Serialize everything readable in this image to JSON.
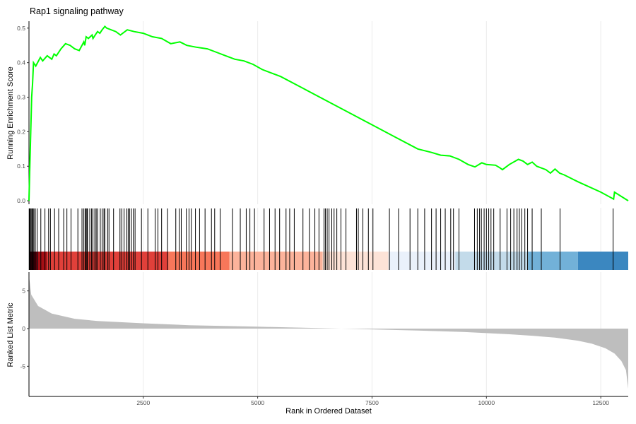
{
  "chart_data": {
    "type": "line",
    "title": "Rap1 signaling pathway",
    "xlabel": "Rank in Ordered Dataset",
    "xlim": [
      1,
      13100
    ],
    "x_ticks": [
      2500,
      5000,
      7500,
      10000,
      12500
    ],
    "panels": {
      "running_score": {
        "ylabel": "Running Enrichment Score",
        "ylim": [
          -0.01,
          0.52
        ],
        "y_ticks": [
          0.0,
          0.1,
          0.2,
          0.3,
          0.4,
          0.5
        ],
        "line_color": "#00ff00",
        "x": [
          1,
          20,
          40,
          60,
          80,
          100,
          150,
          250,
          300,
          400,
          500,
          550,
          600,
          700,
          800,
          900,
          1000,
          1100,
          1200,
          1220,
          1250,
          1300,
          1380,
          1400,
          1450,
          1500,
          1550,
          1600,
          1660,
          1700,
          1900,
          2000,
          2150,
          2300,
          2500,
          2700,
          2900,
          3100,
          3300,
          3450,
          3650,
          3900,
          4100,
          4300,
          4500,
          4700,
          4900,
          5100,
          5500,
          6000,
          6500,
          7000,
          7500,
          8000,
          8500,
          8800,
          9000,
          9200,
          9400,
          9600,
          9750,
          9900,
          10000,
          10200,
          10300,
          10350,
          10500,
          10700,
          10800,
          10900,
          11000,
          11100,
          11300,
          11400,
          11500,
          11600,
          11700,
          12000,
          12500,
          12780,
          12800,
          13100
        ],
        "y": [
          0.0,
          0.1,
          0.2,
          0.3,
          0.34,
          0.4,
          0.39,
          0.415,
          0.405,
          0.42,
          0.41,
          0.425,
          0.42,
          0.44,
          0.455,
          0.45,
          0.44,
          0.435,
          0.46,
          0.45,
          0.475,
          0.47,
          0.48,
          0.47,
          0.48,
          0.49,
          0.485,
          0.495,
          0.505,
          0.5,
          0.49,
          0.48,
          0.495,
          0.49,
          0.485,
          0.475,
          0.47,
          0.455,
          0.46,
          0.45,
          0.445,
          0.44,
          0.43,
          0.42,
          0.41,
          0.405,
          0.395,
          0.38,
          0.36,
          0.325,
          0.29,
          0.255,
          0.22,
          0.185,
          0.15,
          0.14,
          0.132,
          0.13,
          0.12,
          0.105,
          0.098,
          0.11,
          0.105,
          0.103,
          0.095,
          0.09,
          0.105,
          0.12,
          0.115,
          0.105,
          0.112,
          0.1,
          0.09,
          0.08,
          0.092,
          0.08,
          0.075,
          0.055,
          0.025,
          0.005,
          0.025,
          0.0
        ]
      },
      "hits": {
        "positions": [
          5,
          15,
          30,
          50,
          70,
          90,
          110,
          140,
          180,
          260,
          350,
          430,
          470,
          560,
          650,
          760,
          830,
          920,
          1070,
          1160,
          1200,
          1230,
          1250,
          1270,
          1280,
          1330,
          1370,
          1400,
          1440,
          1470,
          1500,
          1560,
          1600,
          1640,
          1660,
          1720,
          1750,
          1850,
          1990,
          2030,
          2080,
          2140,
          2170,
          2200,
          2240,
          2280,
          2320,
          2460,
          2600,
          2760,
          2820,
          2900,
          3030,
          3210,
          3290,
          3330,
          3440,
          3500,
          3550,
          3640,
          3730,
          3850,
          3990,
          4060,
          4180,
          4450,
          4620,
          4750,
          4830,
          4930,
          5140,
          5260,
          5380,
          5480,
          5620,
          5700,
          5800,
          5990,
          6130,
          6250,
          6340,
          6450,
          6480,
          6520,
          6560,
          6620,
          6670,
          6730,
          6820,
          6930,
          7160,
          7200,
          7300,
          7420,
          7520,
          7880,
          8080,
          8330,
          8500,
          8650,
          8800,
          8900,
          9000,
          9100,
          9220,
          9280,
          9400,
          9740,
          9800,
          9850,
          9890,
          9950,
          10000,
          10050,
          10100,
          10160,
          10300,
          10450,
          10530,
          10600,
          10670,
          10720,
          10770,
          10840,
          10900,
          11000,
          11200,
          11610,
          12770
        ],
        "color_bands": [
          {
            "from": 1,
            "to": 200,
            "color": "#67000d"
          },
          {
            "from": 200,
            "to": 400,
            "color": "#a50f15"
          },
          {
            "from": 400,
            "to": 3050,
            "color": "#e0403a"
          },
          {
            "from": 3050,
            "to": 4380,
            "color": "#f7775a"
          },
          {
            "from": 4380,
            "to": 6420,
            "color": "#fcb39b"
          },
          {
            "from": 6420,
            "to": 7860,
            "color": "#fde3d7"
          },
          {
            "from": 7860,
            "to": 9320,
            "color": "#eaf1fb"
          },
          {
            "from": 9320,
            "to": 10910,
            "color": "#c3dbea"
          },
          {
            "from": 10910,
            "to": 12000,
            "color": "#72b1d8"
          },
          {
            "from": 12000,
            "to": 13100,
            "color": "#3b87c0"
          }
        ]
      },
      "ranked_metric": {
        "ylabel": "Ranked List Metric",
        "ylim": [
          -9,
          7.5
        ],
        "y_ticks": [
          -5,
          0,
          5
        ],
        "fill_color": "#bebebe",
        "x": [
          1,
          50,
          200,
          500,
          1000,
          1500,
          2500,
          3500,
          5000,
          6500,
          7500,
          8500,
          9500,
          10500,
          11000,
          11500,
          12000,
          12300,
          12600,
          12800,
          12950,
          13050,
          13100
        ],
        "y": [
          7.0,
          4.5,
          3.0,
          2.0,
          1.3,
          1.0,
          0.7,
          0.45,
          0.25,
          0.05,
          -0.1,
          -0.25,
          -0.45,
          -0.75,
          -0.95,
          -1.2,
          -1.6,
          -2.0,
          -2.6,
          -3.3,
          -4.3,
          -5.5,
          -8.0
        ]
      }
    }
  }
}
